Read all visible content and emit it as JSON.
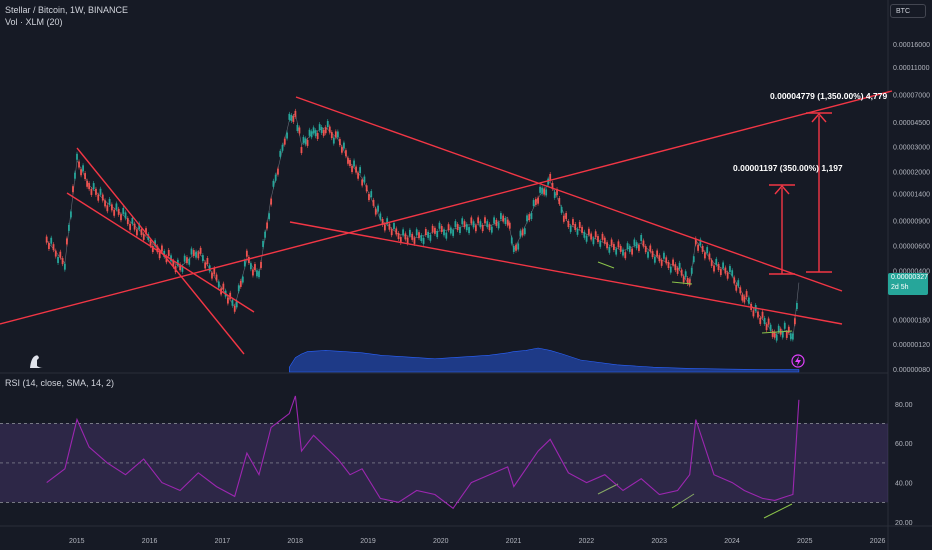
{
  "header": {
    "symbol_line": "Stellar / Bitcoin, 1W, BINANCE",
    "volume_line": "Vol · XLM (20)",
    "currency_badge": "BTC"
  },
  "price_tag": {
    "price": "0.00000327",
    "countdown": "2d 5h",
    "color": "#26a69a"
  },
  "annotations": {
    "upper": "0.00004779 (1,350.00%) 4,779",
    "lower": "0.00001197 (350.00%) 1,197"
  },
  "rsi": {
    "title": "RSI (14, close, SMA, 14, 2)"
  },
  "colors": {
    "background": "#161a25",
    "trendline": "#f23645",
    "volume": "#2962ff",
    "rsi_line": "#9c27b0",
    "rsi_band": "#7e57c2",
    "divergence": "#8bc34a",
    "up_candle": "#26a69a",
    "down_candle": "#ef5350"
  },
  "icons": {
    "logo": "dinosaur-logo-icon",
    "alert": "lightning-alert-icon"
  },
  "chart_data": [
    {
      "type": "line",
      "title": "Stellar / Bitcoin, 1W, BINANCE",
      "x_ticks": [
        "2015",
        "2016",
        "2017",
        "2018",
        "2019",
        "2020",
        "2021",
        "2022",
        "2023",
        "2024",
        "2025",
        "2026"
      ],
      "y_ticks": [
        "0.00016000",
        "0.00011000",
        "0.00007000",
        "0.00004500",
        "0.00003000",
        "0.00002000",
        "0.00001400",
        "0.00000900",
        "0.00000600",
        "0.00000400",
        "0.00000180",
        "0.00000120",
        "0.00000080"
      ],
      "scale": "log",
      "series": [
        {
          "x": [
            "2014-08",
            "2014-11",
            "2015-01",
            "2015-03",
            "2015-06",
            "2015-09",
            "2015-12",
            "2016-03",
            "2016-06",
            "2016-09",
            "2016-12",
            "2017-03",
            "2017-05",
            "2017-07",
            "2017-09",
            "2017-12",
            "2018-01",
            "2018-02",
            "2018-04",
            "2018-06",
            "2018-08",
            "2018-10",
            "2018-12",
            "2019-03",
            "2019-06",
            "2019-09",
            "2019-12",
            "2020-03",
            "2020-06",
            "2020-09",
            "2020-12",
            "2021-01",
            "2021-05",
            "2021-07",
            "2021-10",
            "2022-01",
            "2022-04",
            "2022-07",
            "2022-10",
            "2023-01",
            "2023-04",
            "2023-06",
            "2023-07",
            "2023-10",
            "2024-01",
            "2024-03",
            "2024-06",
            "2024-08",
            "2024-10",
            "2024-11",
            "2024-12"
          ],
          "values": [
            6.5e-06,
            4.5e-06,
            2.4e-05,
            1.6e-05,
            1.2e-05,
            9.5e-06,
            7.2e-06,
            5.3e-06,
            4.2e-06,
            5.5e-06,
            3.4e-06,
            2.2e-06,
            4.8e-06,
            3.7e-06,
            1.3e-05,
            4.6e-05,
            5.2e-05,
            3.1e-05,
            3.8e-05,
            4.1e-05,
            3.4e-05,
            2.3e-05,
            1.8e-05,
            9.2e-06,
            7.2e-06,
            6.8e-06,
            7.5e-06,
            7.8e-06,
            8.5e-06,
            8.2e-06,
            9.5e-06,
            5.5e-06,
            1.3e-05,
            1.7e-05,
            8.5e-06,
            7.2e-06,
            6.2e-06,
            5.5e-06,
            6.2e-06,
            4.8e-06,
            4.2e-06,
            3.1e-06,
            6.5e-06,
            4.5e-06,
            3.7e-06,
            2.6e-06,
            1.8e-06,
            1.4e-06,
            1.5e-06,
            1.3e-06,
            3.27e-06
          ]
        }
      ]
    },
    {
      "type": "area",
      "title": "Vol · XLM (20)",
      "x": [
        "2017-12",
        "2018-01",
        "2018-02",
        "2018-03",
        "2018-06",
        "2018-09",
        "2018-12",
        "2019-03",
        "2019-06",
        "2019-09",
        "2019-12",
        "2020-03",
        "2020-06",
        "2020-09",
        "2020-12",
        "2021-01",
        "2021-03",
        "2021-05",
        "2021-07",
        "2021-09",
        "2021-12",
        "2022-06",
        "2022-12",
        "2023-06",
        "2023-12",
        "2024-06",
        "2024-12"
      ],
      "values": [
        0.2,
        0.6,
        0.75,
        0.85,
        0.9,
        0.85,
        0.8,
        0.7,
        0.65,
        0.6,
        0.55,
        0.6,
        0.65,
        0.7,
        0.8,
        0.85,
        0.9,
        1.0,
        0.9,
        0.75,
        0.5,
        0.3,
        0.2,
        0.15,
        0.12,
        0.1,
        0.1
      ],
      "ylabel": ""
    },
    {
      "type": "line",
      "title": "RSI (14, close, SMA, 14, 2)",
      "y_ticks": [
        "80.00",
        "60.00",
        "40.00",
        "20.00"
      ],
      "ylim": [
        18,
        88
      ],
      "levels": [
        70,
        50,
        30
      ],
      "series": [
        {
          "name": "",
          "x": [
            "2014-08",
            "2014-11",
            "2015-01",
            "2015-03",
            "2015-06",
            "2015-09",
            "2015-12",
            "2016-03",
            "2016-06",
            "2016-09",
            "2016-12",
            "2017-03",
            "2017-05",
            "2017-07",
            "2017-09",
            "2017-12",
            "2018-01",
            "2018-02",
            "2018-04",
            "2018-06",
            "2018-08",
            "2018-10",
            "2018-12",
            "2019-03",
            "2019-06",
            "2019-09",
            "2019-12",
            "2020-03",
            "2020-06",
            "2020-09",
            "2020-12",
            "2021-01",
            "2021-05",
            "2021-07",
            "2021-10",
            "2022-01",
            "2022-04",
            "2022-07",
            "2022-10",
            "2023-01",
            "2023-04",
            "2023-06",
            "2023-07",
            "2023-10",
            "2024-01",
            "2024-03",
            "2024-06",
            "2024-08",
            "2024-10",
            "2024-11",
            "2024-12"
          ],
          "values": [
            40,
            47,
            72,
            58,
            50,
            44,
            52,
            40,
            36,
            45,
            38,
            33,
            55,
            44,
            68,
            75,
            84,
            56,
            64,
            58,
            52,
            44,
            47,
            32,
            30,
            36,
            34,
            27,
            40,
            44,
            48,
            38,
            56,
            62,
            45,
            40,
            44,
            36,
            42,
            34,
            36,
            44,
            72,
            44,
            40,
            36,
            32,
            31,
            33,
            34,
            82
          ]
        }
      ]
    }
  ]
}
